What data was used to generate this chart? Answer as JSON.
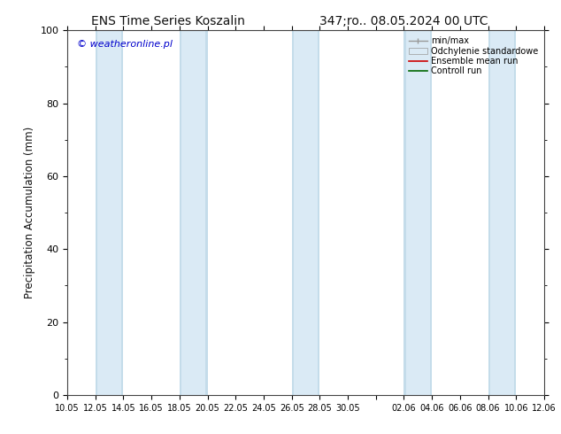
{
  "title_left": "ENS Time Series Koszalin",
  "title_right": "347;ro.. 08.05.2024 00 UTC",
  "ylabel": "Precipitation Accumulation (mm)",
  "ylim": [
    0,
    100
  ],
  "yticks": [
    0,
    20,
    40,
    60,
    80,
    100
  ],
  "watermark": "© weatheronline.pl",
  "legend_entries": [
    "min/max",
    "Odchylenie standardowe",
    "Ensemble mean run",
    "Controll run"
  ],
  "bg_color": "#ffffff",
  "band_color": "#daeaf5",
  "band_edge_color": "#b0cfe0",
  "x_tick_labels": [
    "10.05",
    "12.05",
    "14.05",
    "16.05",
    "18.05",
    "20.05",
    "22.05",
    "24.05",
    "26.05",
    "28.05",
    "30.05",
    "",
    "02.06",
    "04.06",
    "06.06",
    "08.06",
    "10.06",
    "12.06"
  ],
  "x_tick_positions": [
    0,
    2,
    4,
    6,
    8,
    10,
    12,
    14,
    16,
    18,
    20,
    22,
    24,
    26,
    28,
    30,
    32,
    34
  ],
  "xlim": [
    0,
    34
  ],
  "shaded_bands": [
    {
      "xmin": 2,
      "xmax": 4
    },
    {
      "xmin": 8,
      "xmax": 10
    },
    {
      "xmin": 16,
      "xmax": 18
    },
    {
      "xmin": 24,
      "xmax": 26
    },
    {
      "xmin": 30,
      "xmax": 32
    }
  ]
}
